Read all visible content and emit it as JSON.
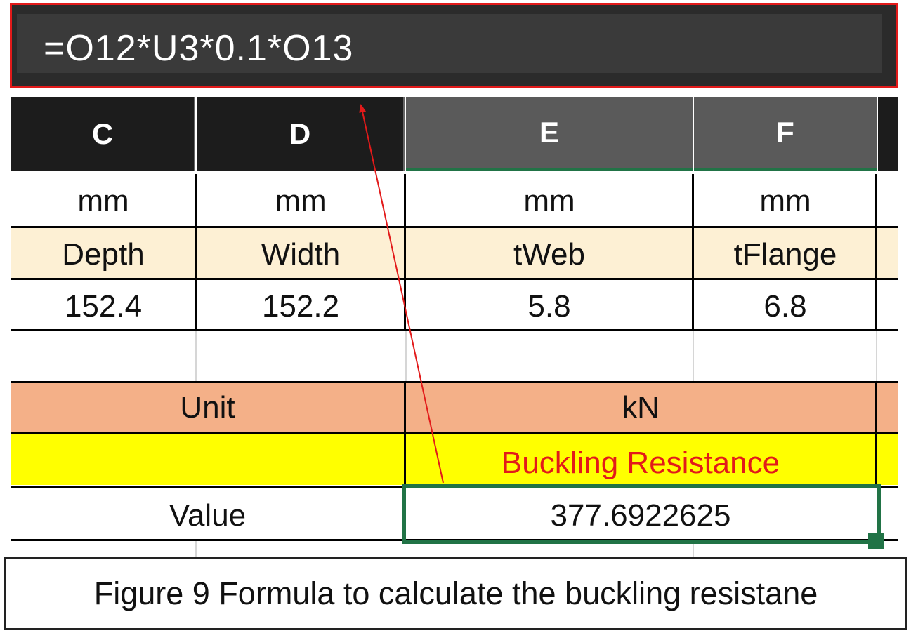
{
  "formula_bar": {
    "text": "=O12*U3*0.1*O13"
  },
  "columns": [
    "C",
    "D",
    "E",
    "F"
  ],
  "rows": {
    "units": [
      "mm",
      "mm",
      "mm",
      "mm"
    ],
    "headers": [
      "Depth",
      "Width",
      "tWeb",
      "tFlange"
    ],
    "values": [
      "152.4",
      "152.2",
      "5.8",
      "6.8"
    ]
  },
  "result_table": {
    "unit_label": "Unit",
    "unit_value": "kN",
    "title": "Buckling Resistance",
    "value_label": "Value",
    "value": "377.6922625"
  },
  "caption": "Figure 9 Formula to calculate the buckling resistane",
  "colors": {
    "accent_red": "#e21a1a",
    "selection_green": "#217346",
    "header_beige": "#fdf0d4",
    "unit_salmon": "#f4b088",
    "title_yellow": "#ffff00"
  }
}
